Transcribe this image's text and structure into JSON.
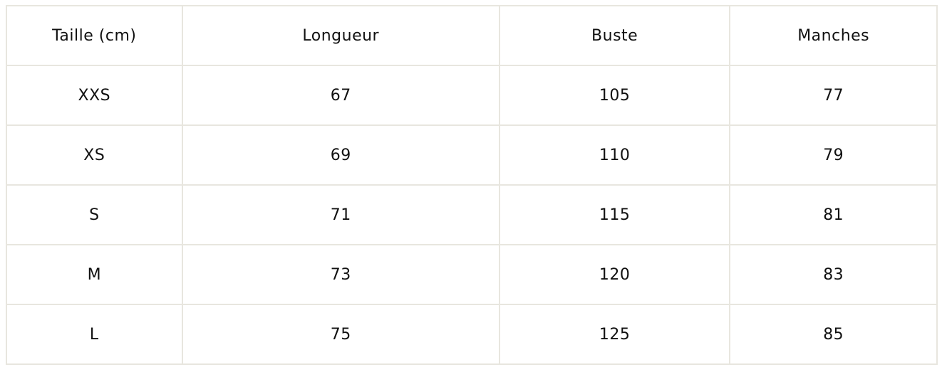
{
  "table": {
    "headers": [
      "Taille (cm)",
      "Longueur",
      "Buste",
      "Manches"
    ],
    "rows": [
      [
        "XXS",
        "67",
        "105",
        "77"
      ],
      [
        "XS",
        "69",
        "110",
        "79"
      ],
      [
        "S",
        "71",
        "115",
        "81"
      ],
      [
        "M",
        "73",
        "120",
        "83"
      ],
      [
        "L",
        "75",
        "125",
        "85"
      ]
    ]
  },
  "colors": {
    "border": "#e8e6df",
    "text": "#111111"
  }
}
